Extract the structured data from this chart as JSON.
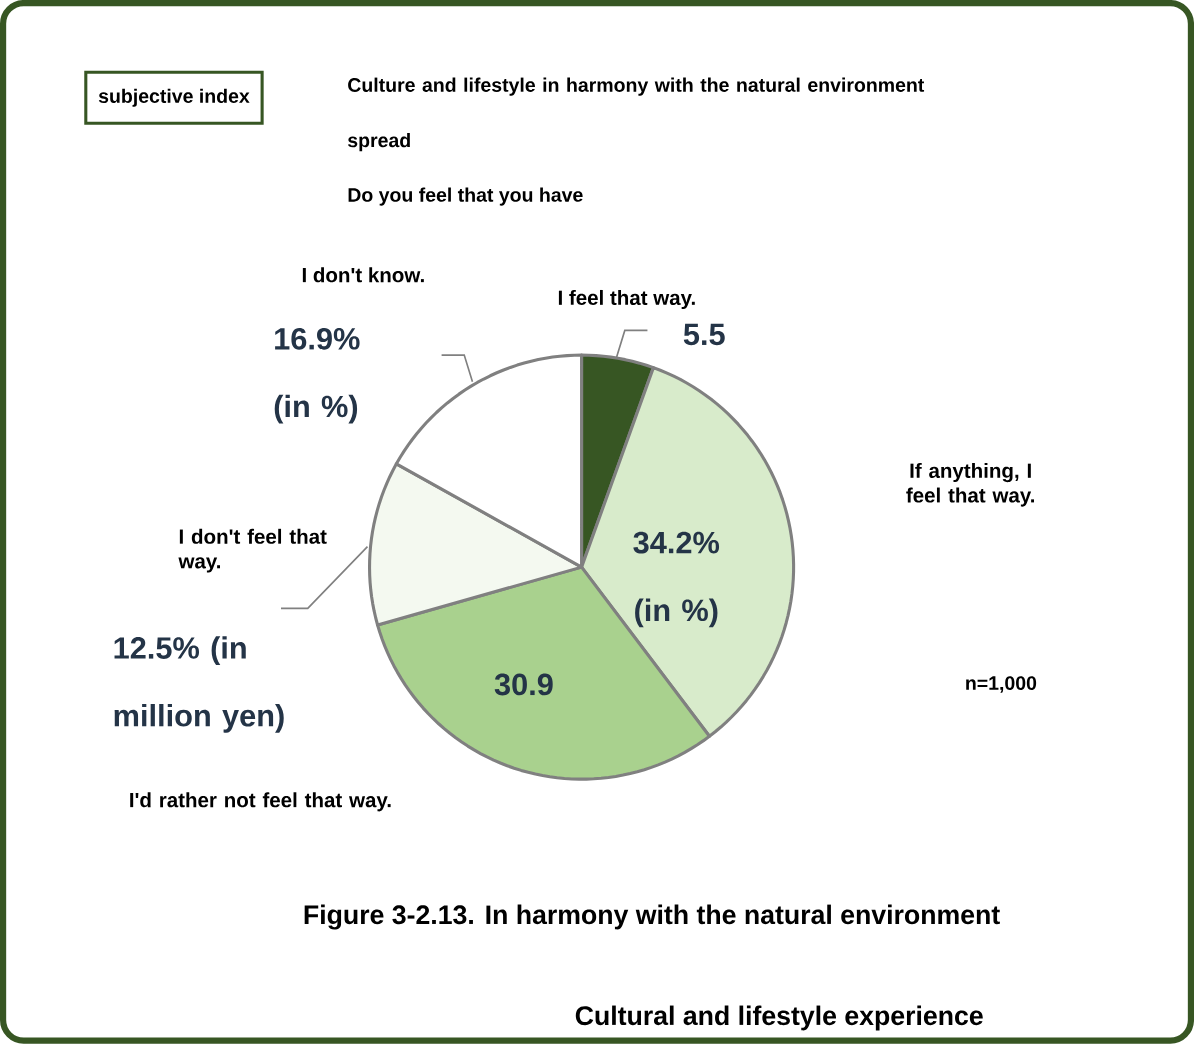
{
  "chart_data": {
    "type": "pie",
    "title": "Figure 3-2.13. In harmony with the natural environment",
    "subtitle": "Cultural and lifestyle experience",
    "categories": [
      "I feel that way.",
      "If anything, I feel that way.",
      "I'd rather not feel that way.",
      "I don't feel that way.",
      "I don't know."
    ],
    "values": [
      5.5,
      34.2,
      30.9,
      12.5,
      16.9
    ],
    "value_labels": [
      "5.5",
      "34.2% (in %)",
      "30.9",
      "12.5% (in million yen)",
      "16.9% (in %)"
    ],
    "colors": [
      "#375623",
      "#d8ebcb",
      "#a9d18e",
      "#f4f9f0",
      "#ffffff"
    ],
    "annotations": [
      "subjective index",
      "Culture and lifestyle in harmony with the natural environment spread",
      "Do you feel that you have",
      "n=1,000"
    ]
  }
}
